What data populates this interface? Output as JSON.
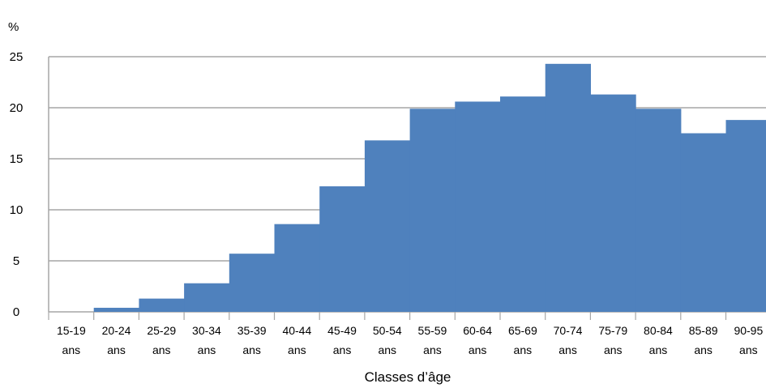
{
  "chart_data": {
    "type": "bar",
    "ylabel": "%",
    "xlabel": "Classes d’âge",
    "ylim": [
      0,
      25
    ],
    "yticks": [
      "0",
      "5",
      "10",
      "15",
      "20",
      "25"
    ],
    "grid": true,
    "bar_color": "#4f81bd",
    "grid_color": "#a6a6a6",
    "categories": [
      [
        "15-19",
        "ans"
      ],
      [
        "20-24",
        "ans"
      ],
      [
        "25-29",
        "ans"
      ],
      [
        "30-34",
        "ans"
      ],
      [
        "35-39",
        "ans"
      ],
      [
        "40-44",
        "ans"
      ],
      [
        "45-49",
        "ans"
      ],
      [
        "50-54",
        "ans"
      ],
      [
        "55-59",
        "ans"
      ],
      [
        "60-64",
        "ans"
      ],
      [
        "65-69",
        "ans"
      ],
      [
        "70-74",
        "ans"
      ],
      [
        "75-79",
        "ans"
      ],
      [
        "80-84",
        "ans"
      ],
      [
        "85-89",
        "ans"
      ],
      [
        "90-95",
        "ans"
      ]
    ],
    "values": [
      0,
      0.4,
      1.3,
      2.8,
      5.7,
      8.6,
      12.3,
      16.8,
      19.9,
      20.6,
      21.1,
      24.3,
      21.3,
      19.9,
      17.5,
      18.8
    ]
  }
}
